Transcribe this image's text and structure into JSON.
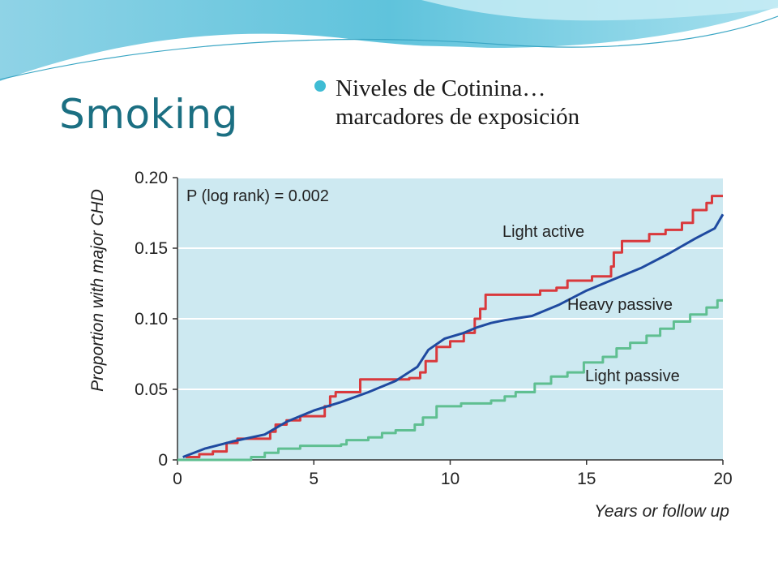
{
  "slide": {
    "title": "Smoking",
    "bullet_line1": "Niveles de Cotinina…",
    "bullet_line2": "marcadores de  exposición",
    "accent_color": "#3fbcd4",
    "title_color": "#1b6f82"
  },
  "chart_data": {
    "type": "line",
    "title": "",
    "annotation": "P (log rank) = 0.002",
    "xlabel": "Years or follow up",
    "ylabel": "Proportion with major CHD",
    "xlim": [
      0,
      20
    ],
    "ylim": [
      0,
      0.2
    ],
    "x_ticks": [
      0,
      5,
      10,
      15,
      20
    ],
    "x_tick_labels": [
      "0",
      "5",
      "10",
      "15",
      "20"
    ],
    "y_ticks": [
      0,
      0.05,
      0.1,
      0.15,
      0.2
    ],
    "y_tick_labels": [
      "0",
      "0.05",
      "0.10",
      "0.15",
      "0.20"
    ],
    "grid": "horizontal",
    "background": "#cde9f1",
    "series": [
      {
        "name": "Light active",
        "color": "#d9393c",
        "step": true,
        "points": [
          [
            0.3,
            0.002
          ],
          [
            0.8,
            0.004
          ],
          [
            1.3,
            0.006
          ],
          [
            1.8,
            0.012
          ],
          [
            2.2,
            0.015
          ],
          [
            3.4,
            0.02
          ],
          [
            3.6,
            0.025
          ],
          [
            4.0,
            0.028
          ],
          [
            4.5,
            0.031
          ],
          [
            5.4,
            0.038
          ],
          [
            5.6,
            0.045
          ],
          [
            5.8,
            0.048
          ],
          [
            6.3,
            0.048
          ],
          [
            6.7,
            0.057
          ],
          [
            7.0,
            0.057
          ],
          [
            8.0,
            0.057
          ],
          [
            8.5,
            0.058
          ],
          [
            8.9,
            0.062
          ],
          [
            9.1,
            0.07
          ],
          [
            9.5,
            0.08
          ],
          [
            10.0,
            0.084
          ],
          [
            10.5,
            0.09
          ],
          [
            10.9,
            0.1
          ],
          [
            11.1,
            0.107
          ],
          [
            11.3,
            0.117
          ],
          [
            12.0,
            0.117
          ],
          [
            13.3,
            0.12
          ],
          [
            13.9,
            0.122
          ],
          [
            14.3,
            0.127
          ],
          [
            14.8,
            0.127
          ],
          [
            15.2,
            0.13
          ],
          [
            15.7,
            0.13
          ],
          [
            15.9,
            0.137
          ],
          [
            16.0,
            0.147
          ],
          [
            16.3,
            0.155
          ],
          [
            17.0,
            0.155
          ],
          [
            17.3,
            0.16
          ],
          [
            17.9,
            0.163
          ],
          [
            18.5,
            0.168
          ],
          [
            18.9,
            0.177
          ],
          [
            19.4,
            0.182
          ],
          [
            19.6,
            0.187
          ],
          [
            20.0,
            0.187
          ]
        ]
      },
      {
        "name": "Heavy passive",
        "color": "#1f4aa0",
        "step": false,
        "points": [
          [
            0.2,
            0.002
          ],
          [
            1.0,
            0.008
          ],
          [
            2.0,
            0.013
          ],
          [
            3.2,
            0.018
          ],
          [
            4.0,
            0.027
          ],
          [
            5.0,
            0.035
          ],
          [
            6.0,
            0.041
          ],
          [
            7.0,
            0.048
          ],
          [
            8.0,
            0.056
          ],
          [
            8.8,
            0.066
          ],
          [
            9.2,
            0.078
          ],
          [
            9.8,
            0.086
          ],
          [
            10.5,
            0.09
          ],
          [
            11.0,
            0.094
          ],
          [
            11.5,
            0.097
          ],
          [
            12.0,
            0.099
          ],
          [
            13.0,
            0.102
          ],
          [
            14.0,
            0.11
          ],
          [
            15.0,
            0.12
          ],
          [
            16.0,
            0.128
          ],
          [
            17.0,
            0.136
          ],
          [
            18.0,
            0.146
          ],
          [
            19.0,
            0.157
          ],
          [
            19.7,
            0.164
          ],
          [
            20.0,
            0.174
          ]
        ]
      },
      {
        "name": "Light passive",
        "color": "#5fbf91",
        "step": true,
        "points": [
          [
            0,
            0
          ],
          [
            2.7,
            0.002
          ],
          [
            3.2,
            0.005
          ],
          [
            3.7,
            0.008
          ],
          [
            4.5,
            0.01
          ],
          [
            6.0,
            0.011
          ],
          [
            6.2,
            0.014
          ],
          [
            7.0,
            0.016
          ],
          [
            7.5,
            0.019
          ],
          [
            8.0,
            0.021
          ],
          [
            8.7,
            0.025
          ],
          [
            9.0,
            0.03
          ],
          [
            9.5,
            0.038
          ],
          [
            10.4,
            0.04
          ],
          [
            11.5,
            0.042
          ],
          [
            12.0,
            0.045
          ],
          [
            12.4,
            0.048
          ],
          [
            13.1,
            0.054
          ],
          [
            13.7,
            0.059
          ],
          [
            14.3,
            0.062
          ],
          [
            14.9,
            0.069
          ],
          [
            15.6,
            0.073
          ],
          [
            16.1,
            0.079
          ],
          [
            16.6,
            0.083
          ],
          [
            17.2,
            0.088
          ],
          [
            17.7,
            0.093
          ],
          [
            18.2,
            0.098
          ],
          [
            18.8,
            0.103
          ],
          [
            19.4,
            0.108
          ],
          [
            19.8,
            0.113
          ],
          [
            20.0,
            0.113
          ]
        ]
      }
    ]
  }
}
